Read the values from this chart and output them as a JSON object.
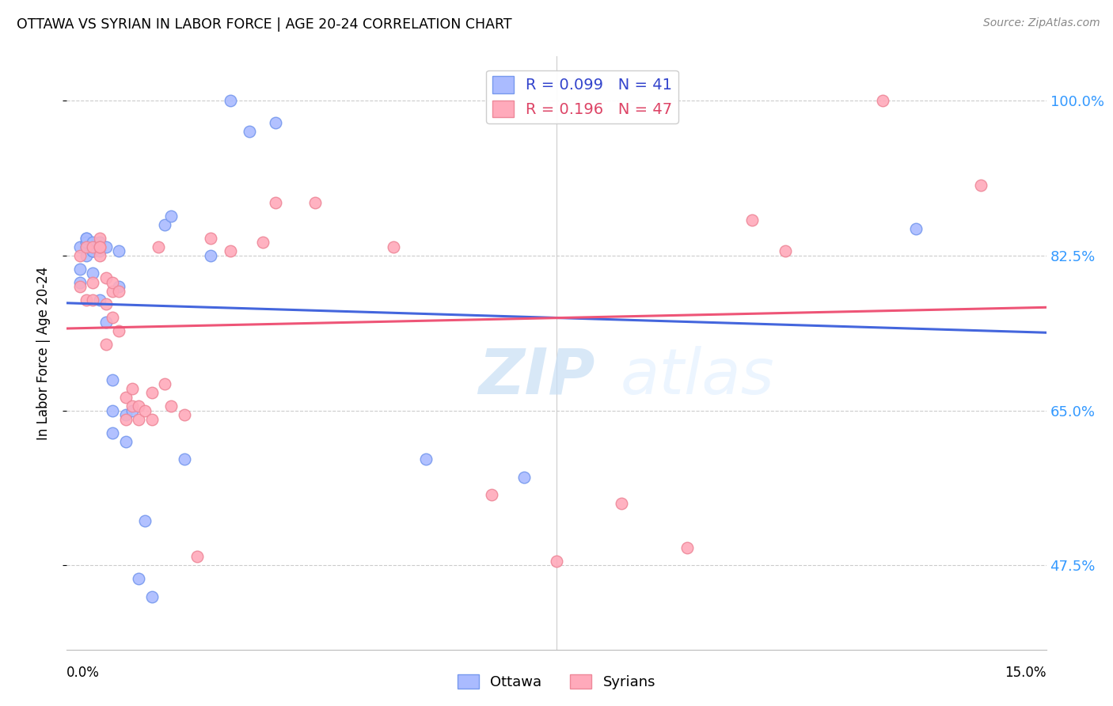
{
  "title": "OTTAWA VS SYRIAN IN LABOR FORCE | AGE 20-24 CORRELATION CHART",
  "source": "Source: ZipAtlas.com",
  "ylabel": "In Labor Force | Age 20-24",
  "ytick_labels": [
    "100.0%",
    "82.5%",
    "65.0%",
    "47.5%"
  ],
  "ytick_values": [
    1.0,
    0.825,
    0.65,
    0.475
  ],
  "xlim": [
    0.0,
    0.15
  ],
  "ylim": [
    0.38,
    1.05
  ],
  "ottawa_color": "#aabbff",
  "syrians_color": "#ffaabb",
  "ottawa_edge_color": "#7799ee",
  "syrians_edge_color": "#ee8899",
  "ottawa_line_color": "#4466dd",
  "syrians_line_color": "#ee5577",
  "legend_r_ottawa": "R = 0.099",
  "legend_n_ottawa": "N = 41",
  "legend_r_syrians": "R = 0.196",
  "legend_n_syrians": "N = 47",
  "watermark_zip": "ZIP",
  "watermark_atlas": "atlas",
  "ottawa_x": [
    0.002,
    0.002,
    0.002,
    0.003,
    0.003,
    0.003,
    0.003,
    0.003,
    0.003,
    0.004,
    0.004,
    0.004,
    0.004,
    0.004,
    0.004,
    0.005,
    0.005,
    0.005,
    0.006,
    0.006,
    0.007,
    0.007,
    0.007,
    0.008,
    0.008,
    0.009,
    0.009,
    0.01,
    0.011,
    0.012,
    0.013,
    0.015,
    0.016,
    0.018,
    0.022,
    0.025,
    0.028,
    0.032,
    0.055,
    0.07,
    0.13
  ],
  "ottawa_y": [
    0.795,
    0.81,
    0.835,
    0.835,
    0.84,
    0.845,
    0.84,
    0.845,
    0.825,
    0.805,
    0.83,
    0.835,
    0.84,
    0.83,
    0.83,
    0.775,
    0.83,
    0.84,
    0.75,
    0.835,
    0.625,
    0.65,
    0.685,
    0.79,
    0.83,
    0.615,
    0.645,
    0.65,
    0.46,
    0.525,
    0.44,
    0.86,
    0.87,
    0.595,
    0.825,
    1.0,
    0.965,
    0.975,
    0.595,
    0.575,
    0.855
  ],
  "syrians_x": [
    0.002,
    0.002,
    0.003,
    0.003,
    0.004,
    0.004,
    0.004,
    0.005,
    0.005,
    0.005,
    0.005,
    0.006,
    0.006,
    0.006,
    0.007,
    0.007,
    0.007,
    0.008,
    0.008,
    0.009,
    0.009,
    0.01,
    0.01,
    0.011,
    0.011,
    0.012,
    0.013,
    0.013,
    0.014,
    0.015,
    0.016,
    0.018,
    0.02,
    0.022,
    0.025,
    0.03,
    0.032,
    0.038,
    0.05,
    0.065,
    0.075,
    0.085,
    0.095,
    0.105,
    0.11,
    0.125,
    0.14
  ],
  "syrians_y": [
    0.79,
    0.825,
    0.775,
    0.835,
    0.775,
    0.835,
    0.795,
    0.825,
    0.845,
    0.835,
    0.835,
    0.725,
    0.77,
    0.8,
    0.755,
    0.785,
    0.795,
    0.74,
    0.785,
    0.64,
    0.665,
    0.655,
    0.675,
    0.64,
    0.655,
    0.65,
    0.64,
    0.67,
    0.835,
    0.68,
    0.655,
    0.645,
    0.485,
    0.845,
    0.83,
    0.84,
    0.885,
    0.885,
    0.835,
    0.555,
    0.48,
    0.545,
    0.495,
    0.865,
    0.83,
    1.0,
    0.905
  ]
}
